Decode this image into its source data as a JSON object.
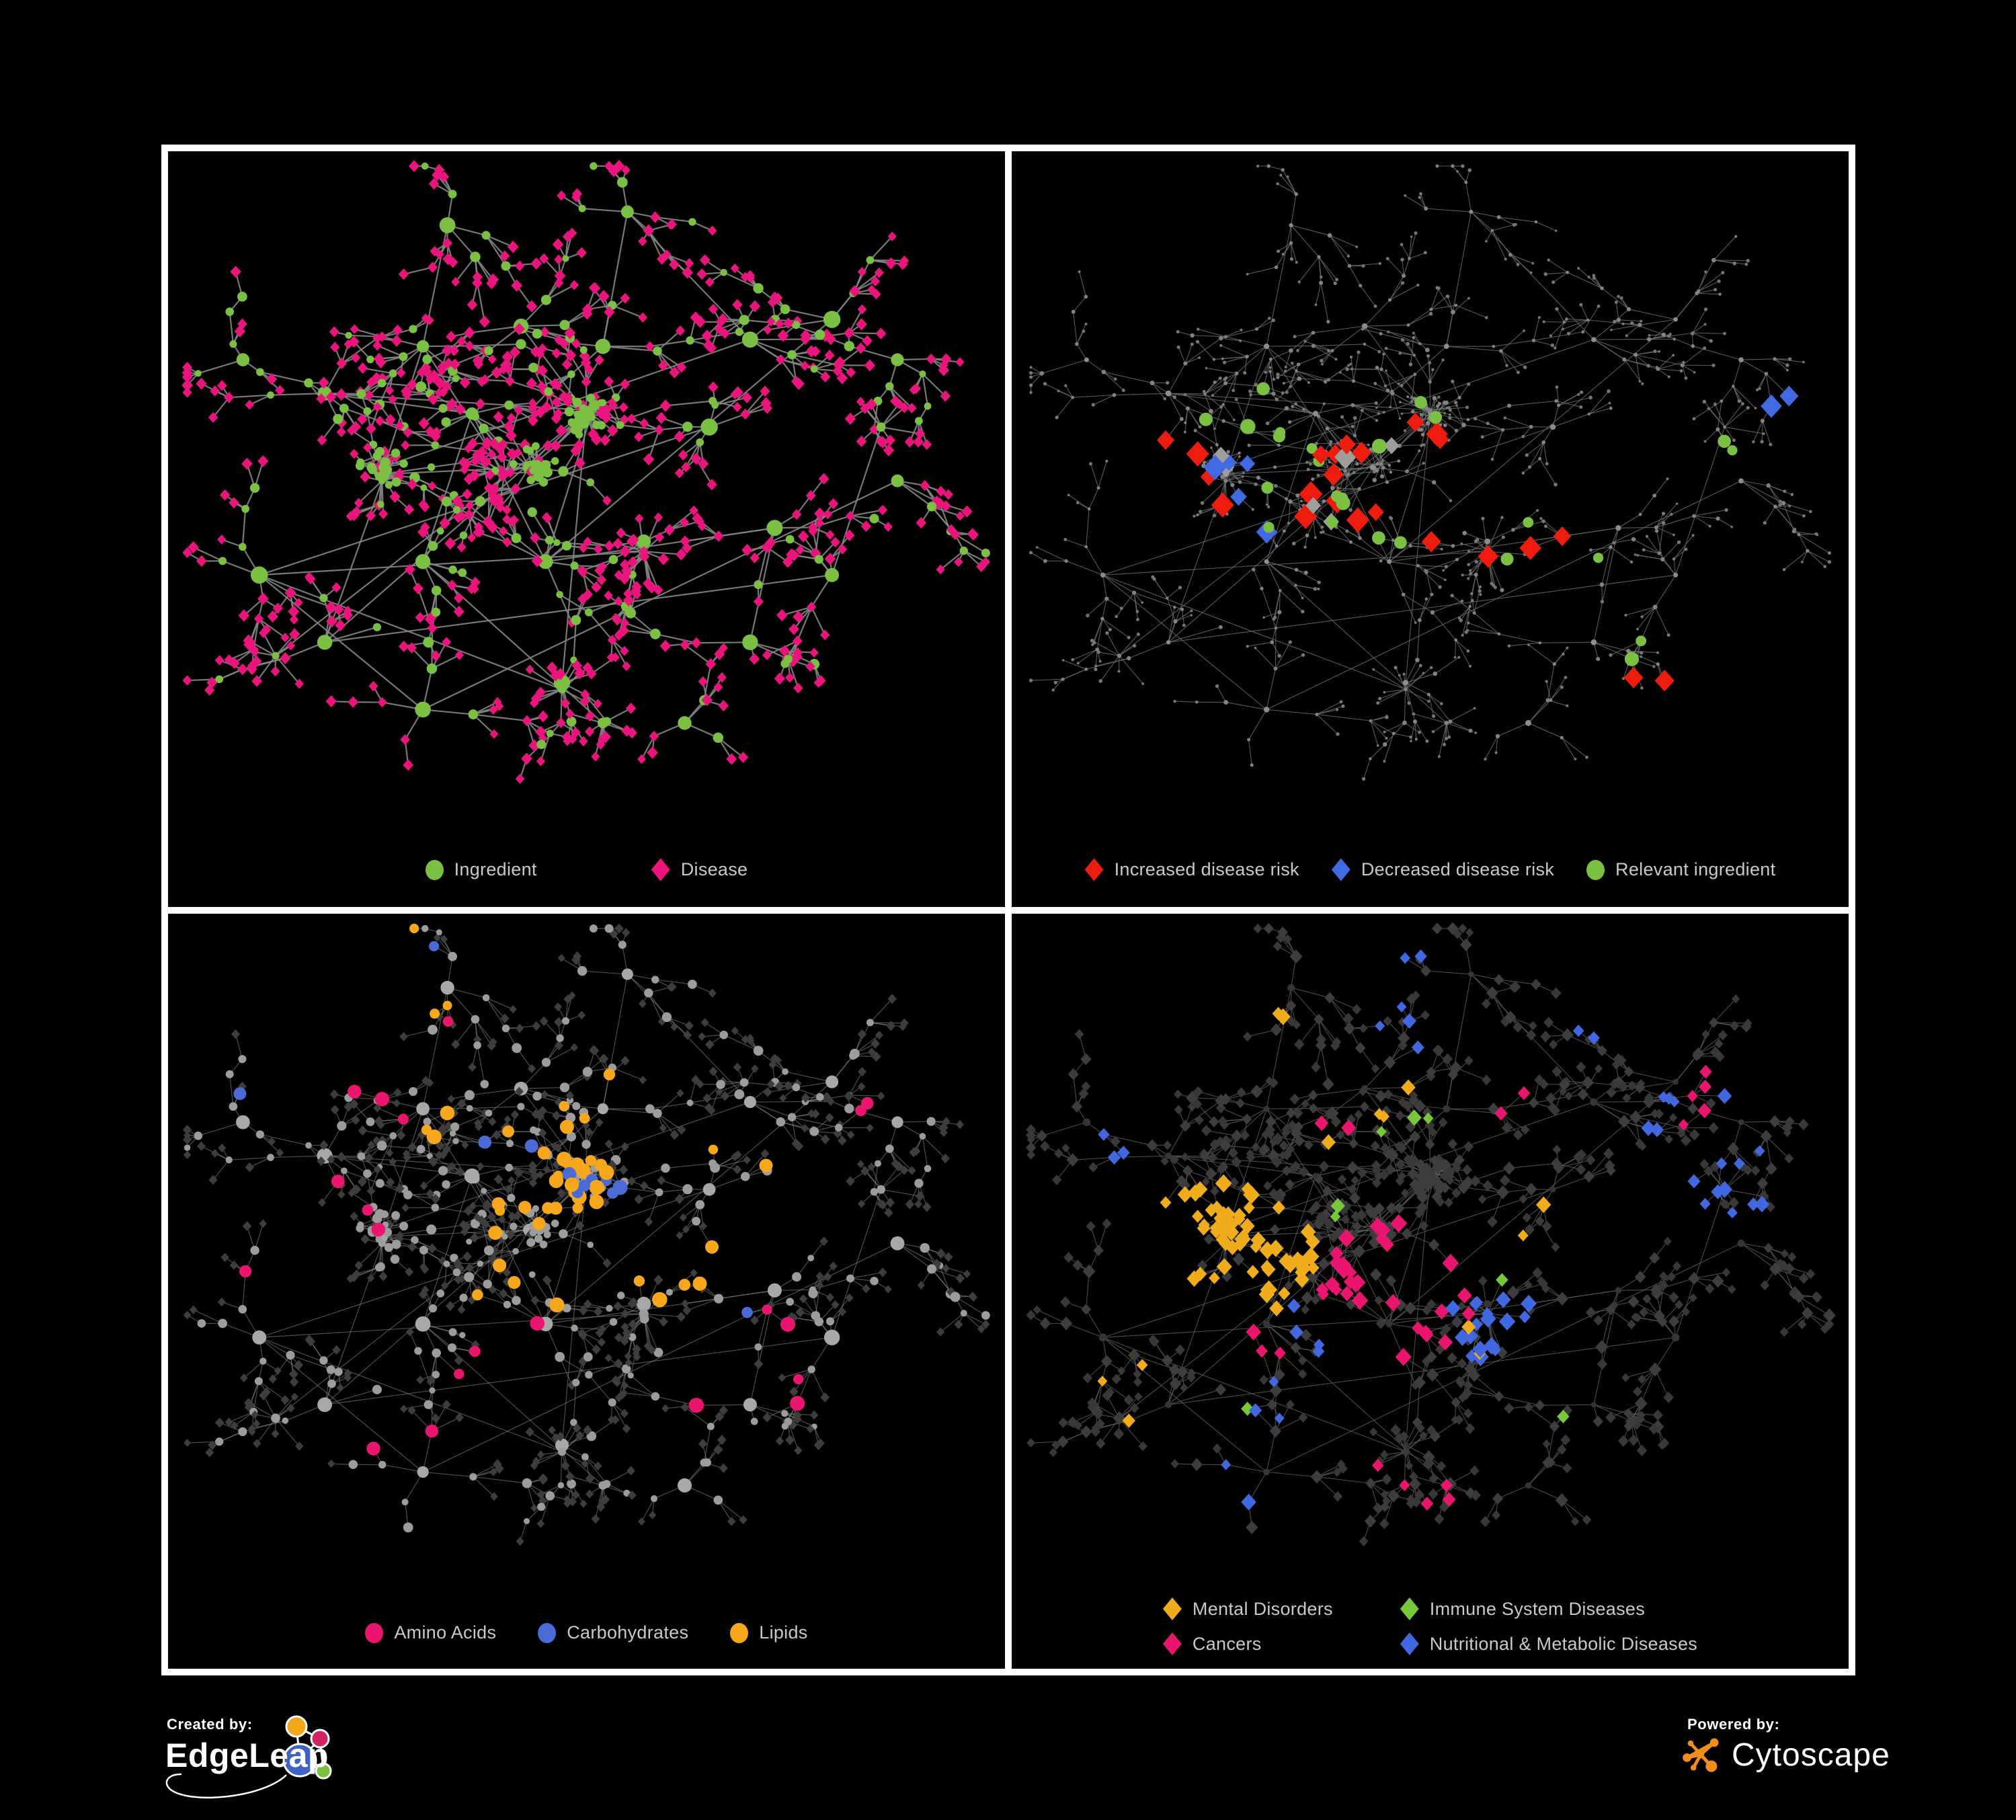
{
  "colors": {
    "background": "#000000",
    "grid_line": "#ffffff",
    "legend_text": "#c9c9c9",
    "ingredient_green": "#7bc043",
    "disease_pink": "#e9147c",
    "risk_red": "#ee1c0f",
    "risk_blue": "#4169e1",
    "neutral_gray": "#9e9e9e",
    "amino_pink": "#e9156f",
    "carb_blue": "#4a6ad5",
    "lipid_orange": "#f6a71b",
    "mental_gold": "#f0ad1b",
    "immune_green": "#76c83a",
    "cancer_pink": "#e9156f",
    "metabolic_blue": "#4168e0",
    "dim_node_gray": "#3d3d3d",
    "light_node_gray": "#9c9c9c"
  },
  "layouts": {
    "main": {
      "seed": 29,
      "hubs": [
        [
          0.25,
          0.47,
          9
        ],
        [
          0.43,
          0.46,
          9
        ],
        [
          0.5,
          0.38,
          7
        ],
        [
          0.36,
          0.38,
          6
        ],
        [
          0.3,
          0.28,
          5
        ],
        [
          0.42,
          0.25,
          5
        ],
        [
          0.52,
          0.28,
          5
        ],
        [
          0.33,
          0.1,
          4
        ],
        [
          0.55,
          0.08,
          4
        ],
        [
          0.45,
          0.6,
          6
        ],
        [
          0.57,
          0.57,
          6
        ],
        [
          0.3,
          0.6,
          5
        ],
        [
          0.18,
          0.35,
          5
        ],
        [
          0.08,
          0.3,
          3
        ],
        [
          0.1,
          0.62,
          4
        ],
        [
          0.18,
          0.72,
          4
        ],
        [
          0.3,
          0.82,
          4
        ],
        [
          0.47,
          0.78,
          5
        ],
        [
          0.62,
          0.84,
          4
        ],
        [
          0.7,
          0.27,
          5
        ],
        [
          0.8,
          0.24,
          4
        ],
        [
          0.88,
          0.3,
          4
        ],
        [
          0.65,
          0.4,
          4
        ],
        [
          0.73,
          0.55,
          4
        ],
        [
          0.8,
          0.62,
          4
        ],
        [
          0.7,
          0.72,
          4
        ],
        [
          0.88,
          0.48,
          3
        ]
      ],
      "stars": [
        [
          0.5,
          0.375,
          14
        ],
        [
          0.57,
          0.585,
          13
        ],
        [
          0.47,
          0.79,
          12
        ],
        [
          0.25,
          0.48,
          12
        ],
        [
          0.4,
          0.47,
          10
        ],
        [
          0.12,
          0.74,
          8
        ],
        [
          0.52,
          0.84,
          8
        ],
        [
          0.86,
          0.4,
          7
        ]
      ],
      "clumps": [
        [
          0.505,
          0.385,
          18,
          0.03
        ],
        [
          0.44,
          0.455,
          14,
          0.03
        ],
        [
          0.25,
          0.46,
          12,
          0.028
        ]
      ],
      "links": 30
    }
  },
  "panels": [
    {
      "name": "ingredient-disease",
      "layout": "main",
      "edge": [
        "#858585",
        2.2,
        0.9
      ],
      "style": {
        "hub": {
          "shape": "circle",
          "fill": "#7bc043",
          "size": [
            9,
            13
          ]
        },
        "mid": {
          "shape": "circle",
          "fill": "#7bc043",
          "size": [
            5,
            8
          ]
        },
        "midAlt": {
          "shape": "diamond",
          "fill": "#e9147c",
          "size": [
            7,
            8.5
          ],
          "frac": 0.42
        },
        "leaf": {
          "shape": "diamond",
          "fill": "#e9147c",
          "size": [
            6.5,
            8.5
          ]
        }
      },
      "overlays": [],
      "legend": {
        "columns": 1,
        "items": [
          {
            "shape": "circle",
            "color": "#7bc043",
            "label": "Ingredient"
          },
          {
            "shape": "diamond",
            "color": "#e9147c",
            "label": "Disease"
          }
        ]
      }
    },
    {
      "name": "disease-risk",
      "layout": "main",
      "edge": [
        "#6f6f6f",
        1.1,
        0.8
      ],
      "style": {
        "hub": {
          "shape": "circle",
          "fill": "#8d8d8d",
          "size": [
            3,
            4.5
          ]
        },
        "mid": {
          "shape": "circle",
          "fill": "#828282",
          "size": [
            2.2,
            3.4
          ]
        },
        "leaf": {
          "shape": "circle",
          "fill": "#767676",
          "size": [
            1.8,
            2.8
          ]
        }
      },
      "overlays": [
        [
          "d",
          "#ee1c0f",
          14,
          14,
          0.43,
          0.5,
          0.13
        ],
        [
          "d",
          "#ee1c0f",
          14,
          4,
          0.22,
          0.46,
          0.07
        ],
        [
          "d",
          "#ee1c0f",
          13,
          3,
          0.62,
          0.55,
          0.08
        ],
        [
          "d",
          "#ee1c0f",
          13,
          1,
          0.7,
          0.44,
          0.04
        ],
        [
          "d",
          "#ee1c0f",
          13,
          2,
          0.8,
          0.79,
          0.06
        ],
        [
          "d",
          "#4169e1",
          14,
          5,
          0.28,
          0.49,
          0.07
        ],
        [
          "d",
          "#4169e1",
          14,
          2,
          0.92,
          0.38,
          0.04
        ],
        [
          "d",
          "#9e9e9e",
          13,
          4,
          0.45,
          0.53,
          0.12
        ],
        [
          "d",
          "#9e9e9e",
          13,
          2,
          0.27,
          0.5,
          0.09
        ],
        [
          "d",
          "#9e9e9e",
          13,
          1,
          0.66,
          0.65,
          0.05
        ],
        [
          "c",
          "#7bc043",
          9,
          14,
          0.4,
          0.47,
          0.14
        ],
        [
          "c",
          "#7bc043",
          9,
          5,
          0.28,
          0.42,
          0.09
        ],
        [
          "c",
          "#7bc043",
          9,
          3,
          0.65,
          0.58,
          0.09
        ],
        [
          "c",
          "#7bc043",
          9,
          2,
          0.76,
          0.77,
          0.06
        ],
        [
          "c",
          "#7bc043",
          9,
          2,
          0.89,
          0.4,
          0.05
        ]
      ],
      "legend": {
        "columns": 1,
        "items": [
          {
            "shape": "diamond",
            "color": "#ee1c0f",
            "label": "Increased disease risk"
          },
          {
            "shape": "diamond",
            "color": "#4169e1",
            "label": "Decreased disease risk"
          },
          {
            "shape": "circle",
            "color": "#7bc043",
            "label": "Relevant ingredient"
          }
        ]
      }
    },
    {
      "name": "nutrient-classes",
      "layout": "main",
      "edge": [
        "#9a9a9a",
        1.2,
        0.5
      ],
      "style": {
        "hub": {
          "shape": "circle",
          "fill": "#a8a8a8",
          "size": [
            8,
            12
          ]
        },
        "mid": {
          "shape": "circle",
          "fill": "#9c9c9c",
          "size": [
            4.5,
            7.5
          ]
        },
        "leaf": {
          "shape": "diamond",
          "fill": "#3d3d3d",
          "size": [
            5.5,
            7
          ]
        }
      },
      "overlays": [
        [
          "c",
          "#f6a71b",
          9,
          16,
          0.5,
          0.4,
          0.055
        ],
        [
          "c",
          "#f6a71b",
          9,
          14,
          0.45,
          0.3,
          0.18
        ],
        [
          "c",
          "#f6a71b",
          9,
          6,
          0.42,
          0.5,
          0.1
        ],
        [
          "c",
          "#f6a71b",
          9,
          5,
          0.63,
          0.54,
          0.07
        ],
        [
          "c",
          "#f6a71b",
          8,
          3,
          0.3,
          0.08,
          0.08
        ],
        [
          "c",
          "#f6a71b",
          8,
          2,
          0.7,
          0.36,
          0.06
        ],
        [
          "c",
          "#4a6ad5",
          9,
          7,
          0.5,
          0.4,
          0.06
        ],
        [
          "c",
          "#4a6ad5",
          9,
          2,
          0.4,
          0.3,
          0.06
        ],
        [
          "c",
          "#4a6ad5",
          8,
          1,
          0.28,
          0.06,
          0.04
        ],
        [
          "c",
          "#4a6ad5",
          8,
          1,
          0.05,
          0.25,
          0.04
        ],
        [
          "c",
          "#4a6ad5",
          8,
          1,
          0.68,
          0.55,
          0.04
        ],
        [
          "c",
          "#e9156f",
          9,
          4,
          0.25,
          0.2,
          0.1
        ],
        [
          "c",
          "#e9156f",
          9,
          3,
          0.24,
          0.45,
          0.08
        ],
        [
          "c",
          "#e9156f",
          9,
          5,
          0.7,
          0.66,
          0.09
        ],
        [
          "c",
          "#e9156f",
          9,
          3,
          0.28,
          0.72,
          0.08
        ],
        [
          "c",
          "#e9156f",
          9,
          2,
          0.42,
          0.63,
          0.06
        ],
        [
          "c",
          "#e9156f",
          8,
          2,
          0.85,
          0.26,
          0.07
        ],
        [
          "c",
          "#e9156f",
          8,
          1,
          0.65,
          0.04,
          0.04
        ],
        [
          "c",
          "#e9156f",
          8,
          1,
          0.11,
          0.5,
          0.04
        ]
      ],
      "legend": {
        "columns": 1,
        "items": [
          {
            "shape": "circle",
            "color": "#e9156f",
            "label": "Amino Acids"
          },
          {
            "shape": "circle",
            "color": "#4a6ad5",
            "label": "Carbohydrates"
          },
          {
            "shape": "circle",
            "color": "#f6a71b",
            "label": "Lipids"
          }
        ]
      }
    },
    {
      "name": "disease-categories",
      "layout": "main",
      "edge": [
        "#636363",
        1.1,
        0.75
      ],
      "style": {
        "hub": {
          "shape": "circle",
          "fill": "#353535",
          "size": [
            4,
            6
          ]
        },
        "mid": {
          "shape": "diamond",
          "fill": "#3d3d3d",
          "size": [
            7,
            9.5
          ]
        },
        "leaf": {
          "shape": "diamond",
          "fill": "#383838",
          "size": [
            6,
            8
          ]
        }
      },
      "overlays": [
        [
          "d",
          "#f0ad1b",
          10,
          60,
          0.25,
          0.5,
          0.11
        ],
        [
          "d",
          "#f0ad1b",
          9,
          4,
          0.4,
          0.26,
          0.09
        ],
        [
          "d",
          "#f0ad1b",
          9,
          3,
          0.14,
          0.7,
          0.06
        ],
        [
          "d",
          "#f0ad1b",
          9,
          2,
          0.62,
          0.42,
          0.05
        ],
        [
          "d",
          "#f0ad1b",
          9,
          2,
          0.55,
          0.62,
          0.05
        ],
        [
          "d",
          "#f0ad1b",
          9,
          2,
          0.3,
          0.11,
          0.05
        ],
        [
          "d",
          "#e9156f",
          10,
          30,
          0.46,
          0.55,
          0.1
        ],
        [
          "d",
          "#e9156f",
          9,
          5,
          0.86,
          0.28,
          0.06
        ],
        [
          "d",
          "#e9156f",
          9,
          5,
          0.52,
          0.8,
          0.09
        ],
        [
          "d",
          "#e9156f",
          9,
          3,
          0.27,
          0.62,
          0.06
        ],
        [
          "d",
          "#e9156f",
          9,
          2,
          0.6,
          0.3,
          0.05
        ],
        [
          "d",
          "#e9156f",
          9,
          2,
          0.38,
          0.27,
          0.05
        ],
        [
          "d",
          "#4168e0",
          10,
          18,
          0.58,
          0.6,
          0.06
        ],
        [
          "d",
          "#4168e0",
          9,
          10,
          0.82,
          0.32,
          0.1
        ],
        [
          "d",
          "#4168e0",
          9,
          6,
          0.88,
          0.45,
          0.07
        ],
        [
          "d",
          "#4168e0",
          9,
          6,
          0.48,
          0.1,
          0.09
        ],
        [
          "d",
          "#4168e0",
          9,
          5,
          0.17,
          0.13,
          0.08
        ],
        [
          "d",
          "#4168e0",
          9,
          5,
          0.32,
          0.63,
          0.07
        ],
        [
          "d",
          "#4168e0",
          9,
          4,
          0.27,
          0.8,
          0.08
        ],
        [
          "d",
          "#4168e0",
          9,
          3,
          0.12,
          0.3,
          0.06
        ],
        [
          "d",
          "#4168e0",
          9,
          3,
          0.72,
          0.12,
          0.06
        ],
        [
          "d",
          "#76c83a",
          9,
          2,
          0.45,
          0.28,
          0.06
        ],
        [
          "d",
          "#76c83a",
          9,
          2,
          0.38,
          0.47,
          0.05
        ],
        [
          "d",
          "#76c83a",
          9,
          1,
          0.57,
          0.55,
          0.04
        ],
        [
          "d",
          "#76c83a",
          9,
          1,
          0.27,
          0.73,
          0.04
        ],
        [
          "d",
          "#76c83a",
          9,
          1,
          0.7,
          0.75,
          0.04
        ],
        [
          "d",
          "#76c83a",
          9,
          1,
          0.52,
          0.27,
          0.04
        ]
      ],
      "legend": {
        "columns": 2,
        "items": [
          {
            "shape": "diamond",
            "color": "#f0ad1b",
            "label": "Mental Disorders"
          },
          {
            "shape": "diamond",
            "color": "#76c83a",
            "label": "Immune System Diseases"
          },
          {
            "shape": "diamond",
            "color": "#e9156f",
            "label": "Cancers"
          },
          {
            "shape": "diamond",
            "color": "#4168e0",
            "label": "Nutritional & Metabolic Diseases"
          }
        ]
      }
    }
  ],
  "footer": {
    "created_by": {
      "label": "Created by:",
      "brand": "EdgeLeap",
      "glyph": {
        "blue": "#3f62c4",
        "orange": "#f0a818",
        "magenta": "#cf2567",
        "green": "#7bc043",
        "stroke": "#ffffff"
      }
    },
    "powered_by": {
      "label": "Powered by:",
      "brand": "Cytoscape",
      "icon": "#ef8e1c"
    }
  }
}
